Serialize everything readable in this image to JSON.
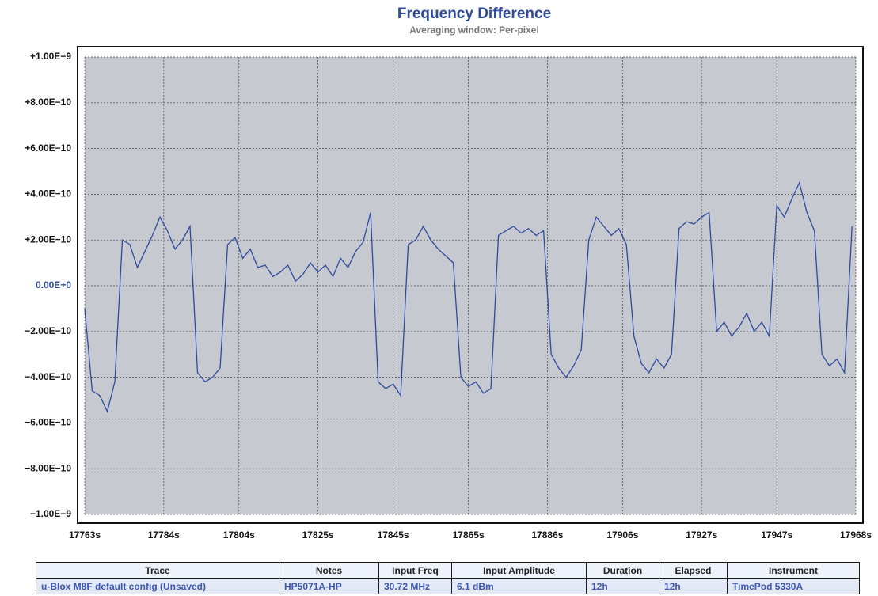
{
  "chart_data": {
    "type": "line",
    "title": "Frequency Difference",
    "subtitle": "Averaging window: Per-pixel",
    "color": "#2e4a9e",
    "grid": true,
    "xlim": [
      17763,
      17968
    ],
    "ylim": [
      -1e-09,
      1e-09
    ],
    "xticks": [
      {
        "value": 17763,
        "label": "17763s"
      },
      {
        "value": 17784,
        "label": "17784s"
      },
      {
        "value": 17804,
        "label": "17804s"
      },
      {
        "value": 17825,
        "label": "17825s"
      },
      {
        "value": 17845,
        "label": "17845s"
      },
      {
        "value": 17865,
        "label": "17865s"
      },
      {
        "value": 17886,
        "label": "17886s"
      },
      {
        "value": 17906,
        "label": "17906s"
      },
      {
        "value": 17927,
        "label": "17927s"
      },
      {
        "value": 17947,
        "label": "17947s"
      },
      {
        "value": 17968,
        "label": "17968s"
      }
    ],
    "yticks": [
      {
        "value": 1e-09,
        "label": "+1.00E−9"
      },
      {
        "value": 8e-10,
        "label": "+8.00E−10"
      },
      {
        "value": 6e-10,
        "label": "+6.00E−10"
      },
      {
        "value": 4e-10,
        "label": "+4.00E−10"
      },
      {
        "value": 2e-10,
        "label": "+2.00E−10"
      },
      {
        "value": 0,
        "label": "0.00E+0"
      },
      {
        "value": -2e-10,
        "label": "−2.00E−10"
      },
      {
        "value": -4e-10,
        "label": "−4.00E−10"
      },
      {
        "value": -6e-10,
        "label": "−6.00E−10"
      },
      {
        "value": -8e-10,
        "label": "−8.00E−10"
      },
      {
        "value": -1e-09,
        "label": "−1.00E−9"
      }
    ],
    "x": [
      17763,
      17765,
      17767,
      17769,
      17771,
      17773,
      17775,
      17777,
      17779,
      17781,
      17783,
      17785,
      17787,
      17789,
      17791,
      17793,
      17795,
      17797,
      17799,
      17801,
      17803,
      17805,
      17807,
      17809,
      17811,
      17813,
      17815,
      17817,
      17819,
      17821,
      17823,
      17825,
      17827,
      17829,
      17831,
      17833,
      17835,
      17837,
      17839,
      17841,
      17843,
      17845,
      17847,
      17849,
      17851,
      17853,
      17855,
      17857,
      17859,
      17861,
      17863,
      17865,
      17867,
      17869,
      17871,
      17873,
      17875,
      17877,
      17879,
      17881,
      17883,
      17885,
      17887,
      17889,
      17891,
      17893,
      17895,
      17897,
      17899,
      17901,
      17903,
      17905,
      17907,
      17909,
      17911,
      17913,
      17915,
      17917,
      17919,
      17921,
      17923,
      17925,
      17927,
      17929,
      17931,
      17933,
      17935,
      17937,
      17939,
      17941,
      17943,
      17945,
      17947,
      17949,
      17951,
      17953,
      17955,
      17957,
      17959,
      17961,
      17963,
      17965,
      17967
    ],
    "values": [
      -1e-10,
      -4.6e-10,
      -4.8e-10,
      -5.5e-10,
      -4.2e-10,
      2e-10,
      1.8e-10,
      8e-11,
      1.5e-10,
      2.2e-10,
      3e-10,
      2.4e-10,
      1.6e-10,
      2e-10,
      2.6e-10,
      -3.8e-10,
      -4.2e-10,
      -4e-10,
      -3.6e-10,
      1.8e-10,
      2.1e-10,
      1.2e-10,
      1.6e-10,
      8e-11,
      9e-11,
      4e-11,
      6e-11,
      9e-11,
      2e-11,
      5e-11,
      1e-10,
      6e-11,
      9e-11,
      4e-11,
      1.2e-10,
      8e-11,
      1.5e-10,
      1.9e-10,
      3.2e-10,
      -4.2e-10,
      -4.5e-10,
      -4.3e-10,
      -4.8e-10,
      1.8e-10,
      2e-10,
      2.6e-10,
      2e-10,
      1.6e-10,
      1.3e-10,
      1e-10,
      -4e-10,
      -4.4e-10,
      -4.2e-10,
      -4.7e-10,
      -4.5e-10,
      2.2e-10,
      2.4e-10,
      2.6e-10,
      2.3e-10,
      2.5e-10,
      2.2e-10,
      2.4e-10,
      -3e-10,
      -3.6e-10,
      -4e-10,
      -3.5e-10,
      -2.8e-10,
      2e-10,
      3e-10,
      2.6e-10,
      2.2e-10,
      2.5e-10,
      1.8e-10,
      -2.2e-10,
      -3.4e-10,
      -3.8e-10,
      -3.2e-10,
      -3.6e-10,
      -3e-10,
      2.5e-10,
      2.8e-10,
      2.7e-10,
      3e-10,
      3.2e-10,
      -2e-10,
      -1.6e-10,
      -2.2e-10,
      -1.8e-10,
      -1.2e-10,
      -2e-10,
      -1.6e-10,
      -2.2e-10,
      3.5e-10,
      3e-10,
      3.8e-10,
      4.5e-10,
      3.2e-10,
      2.4e-10,
      -3e-10,
      -3.5e-10,
      -3.2e-10,
      -3.8e-10,
      2.6e-10
    ]
  },
  "table": {
    "columns": [
      "Trace",
      "Notes",
      "Input Freq",
      "Input Amplitude",
      "Duration",
      "Elapsed",
      "Instrument"
    ],
    "rows": [
      [
        "u-Blox M8F default config (Unsaved)",
        "HP5071A-HP",
        "30.72 MHz",
        "6.1 dBm",
        "12h",
        "12h",
        "TimePod 5330A"
      ]
    ]
  }
}
